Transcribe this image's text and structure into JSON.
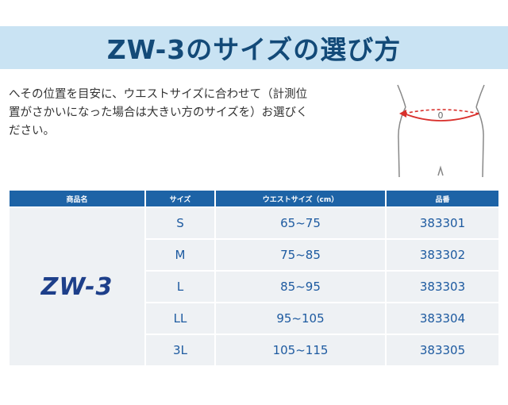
{
  "banner": {
    "title": "ZW-3のサイズの選び方"
  },
  "intro": {
    "lines": [
      "へその位置を目安に、ウエストサイズに合わせて（計測位",
      "置がさかいになった場合は大きい方のサイズを）お選びく",
      "ださい。"
    ]
  },
  "figure": {
    "icon": "waist-measurement-diagram",
    "navel_mark": "0",
    "accent_color": "#d9302c"
  },
  "table": {
    "headers": [
      "商品名",
      "サイズ",
      "ウエストサイズ（cm）",
      "品番"
    ],
    "product_name": "ZW-3",
    "rows": [
      {
        "size": "S",
        "waist": "65~75",
        "code": "383301"
      },
      {
        "size": "M",
        "waist": "75~85",
        "code": "383302"
      },
      {
        "size": "L",
        "waist": "85~95",
        "code": "383303"
      },
      {
        "size": "LL",
        "waist": "95~105",
        "code": "383304"
      },
      {
        "size": "3L",
        "waist": "105~115",
        "code": "383305"
      }
    ]
  },
  "colors": {
    "banner_bg": "#c9e3f3",
    "title_color": "#134a78",
    "header_bg": "#1d63a6",
    "cell_bg": "#eef1f4",
    "cell_text": "#1d5aa0"
  }
}
